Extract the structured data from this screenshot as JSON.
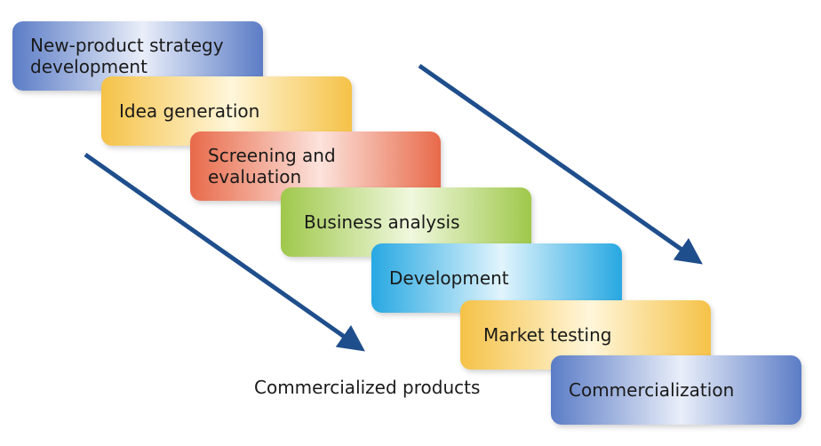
{
  "steps": [
    {
      "label": "New-product strategy\ndevelopment",
      "color": "#5b7cc6",
      "color_light": "#e9eef9"
    },
    {
      "label": "Idea generation",
      "color": "#f5c247",
      "color_light": "#fff6da"
    },
    {
      "label": "Screening and\nevaluation",
      "color": "#e86a4a",
      "color_light": "#fce3dc"
    },
    {
      "label": "Business analysis",
      "color": "#9fc84b",
      "color_light": "#f0f8de"
    },
    {
      "label": "Development",
      "color": "#27a8e2",
      "color_light": "#e1f4fc"
    },
    {
      "label": "Market testing",
      "color": "#f5c247",
      "color_light": "#fff6da"
    },
    {
      "label": "Commercialization",
      "color": "#5b7cc6",
      "color_light": "#e9eef9"
    }
  ],
  "caption": "Commercialized products",
  "arrow_color": "#1f4e8c"
}
